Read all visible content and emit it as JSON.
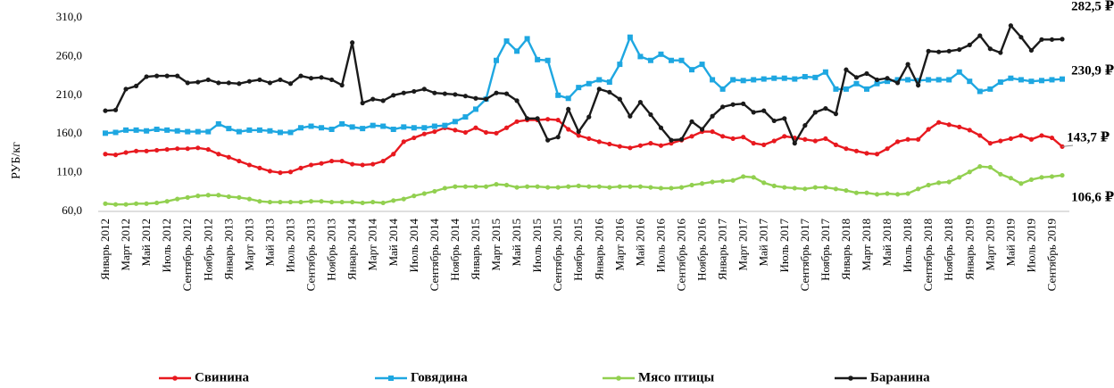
{
  "chart_data": {
    "type": "line",
    "y_label": "РУБ/кг",
    "ylim": [
      60,
      310
    ],
    "yticks": [
      {
        "value": 60,
        "label": "60,0"
      },
      {
        "value": 110,
        "label": "110,0"
      },
      {
        "value": 160,
        "label": "160,0"
      },
      {
        "value": 210,
        "label": "210,0"
      },
      {
        "value": 260,
        "label": "260,0"
      },
      {
        "value": 310,
        "label": "310,0"
      }
    ],
    "grid": false,
    "legend": "bottom",
    "categories": [
      "Январь 2012",
      null,
      "Март 2012",
      null,
      "Май 2012",
      null,
      "Июль 2012",
      null,
      "Сентябрь 2012",
      null,
      "Ноябрь 2012",
      null,
      "Январь 2013",
      null,
      "Март 2013",
      null,
      "Май 2013",
      null,
      "Июль 2013",
      null,
      "Сентябрь 2013",
      null,
      "Ноябрь 2013",
      null,
      "Январь 2014",
      null,
      "Март 2014",
      null,
      "Май 2014",
      null,
      "Июль 2014",
      null,
      "Сентябрь 2014",
      null,
      "Ноябрь 2014",
      null,
      "Январь 2015",
      null,
      "Март 2015",
      null,
      "Май 2015",
      null,
      "Июль 2015",
      null,
      "Сентябрь 2015",
      null,
      "Ноябрь 2015",
      null,
      "Январь 2016",
      null,
      "Март 2016",
      null,
      "Май 2016",
      null,
      "Июль 2016",
      null,
      "Сентябрь 2016",
      null,
      "Ноябрь 2016",
      null,
      "Январь 2017",
      null,
      "Март 2017",
      null,
      "Май 2017",
      null,
      "Июль 2017",
      null,
      "Сентябрь 2017",
      null,
      "Ноябрь 2017",
      null,
      "Январь 2018",
      null,
      "Март 2018",
      null,
      "Май 2018",
      null,
      "Июль 2018",
      null,
      "Сентябрь 2018",
      null,
      "Ноябрь 2018",
      null,
      "Январь 2019",
      null,
      "Март 2019",
      null,
      "Май 2019",
      null,
      "Июль 2019",
      null,
      "Сентябрь 2019",
      null
    ],
    "series": [
      {
        "name": "Свинина",
        "color": "#e8191f",
        "marker": "circle",
        "values": [
          134,
          133,
          136,
          138,
          138,
          139,
          140,
          141,
          141,
          142,
          140,
          134,
          130,
          125,
          120,
          116,
          112,
          110,
          111,
          116,
          120,
          122,
          125,
          125,
          121,
          120,
          121,
          125,
          134,
          150,
          155,
          160,
          163,
          168,
          165,
          162,
          168,
          162,
          161,
          168,
          176,
          178,
          178,
          179,
          178,
          166,
          158,
          154,
          150,
          147,
          144,
          142,
          145,
          148,
          145,
          148,
          152,
          157,
          163,
          163,
          157,
          154,
          156,
          148,
          146,
          151,
          157,
          155,
          153,
          151,
          154,
          146,
          141,
          138,
          135,
          134,
          141,
          150,
          153,
          153,
          166,
          175,
          172,
          169,
          165,
          158,
          148,
          151,
          154,
          158,
          153,
          158,
          155,
          143.7
        ],
        "value_labels": [
          null,
          null,
          null,
          null,
          null,
          null,
          null,
          null,
          null,
          null,
          null,
          null,
          null,
          null,
          null,
          null,
          null,
          null,
          null,
          null,
          null,
          null,
          null,
          null,
          null,
          null,
          null,
          null,
          null,
          null,
          null,
          null,
          null,
          null,
          null,
          null,
          null,
          null,
          null,
          null,
          null,
          null,
          null,
          null,
          null,
          null,
          null,
          null,
          null,
          null,
          null,
          null,
          null,
          null,
          null,
          null,
          null,
          null,
          null,
          null,
          null,
          null,
          null,
          null,
          null,
          null,
          null,
          null,
          null,
          null,
          null,
          null,
          null,
          null,
          null,
          null,
          null,
          null,
          null,
          null,
          null,
          null,
          null,
          null,
          null,
          null,
          null,
          null,
          null,
          null,
          null,
          null,
          null,
          "143,7 ₽"
        ]
      },
      {
        "name": "Говядина",
        "color": "#1ea7e1",
        "marker": "square",
        "values": [
          161,
          162,
          165,
          165,
          164,
          166,
          165,
          164,
          163,
          163,
          163,
          173,
          167,
          163,
          165,
          165,
          164,
          162,
          162,
          168,
          170,
          168,
          166,
          173,
          169,
          167,
          171,
          170,
          166,
          169,
          168,
          168,
          170,
          171,
          176,
          182,
          192,
          205,
          255,
          280,
          267,
          283,
          256,
          255,
          210,
          206,
          220,
          225,
          230,
          227,
          250,
          285,
          260,
          255,
          263,
          255,
          255,
          243,
          250,
          230,
          218,
          230,
          229,
          230,
          231,
          232,
          232,
          231,
          234,
          233,
          240,
          218,
          218,
          225,
          218,
          225,
          228,
          230,
          230,
          229,
          230,
          230,
          230,
          240,
          228,
          215,
          218,
          227,
          232,
          230,
          228,
          229,
          230,
          230.9
        ],
        "value_labels": [
          null,
          null,
          null,
          null,
          null,
          null,
          null,
          null,
          null,
          null,
          null,
          null,
          null,
          null,
          null,
          null,
          null,
          null,
          null,
          null,
          null,
          null,
          null,
          null,
          null,
          null,
          null,
          null,
          null,
          null,
          null,
          null,
          null,
          null,
          null,
          null,
          null,
          null,
          null,
          null,
          null,
          null,
          null,
          null,
          null,
          null,
          null,
          null,
          null,
          null,
          null,
          null,
          null,
          null,
          null,
          null,
          null,
          null,
          null,
          null,
          null,
          null,
          null,
          null,
          null,
          null,
          null,
          null,
          null,
          null,
          null,
          null,
          null,
          null,
          null,
          null,
          null,
          null,
          null,
          null,
          null,
          null,
          null,
          null,
          null,
          null,
          null,
          null,
          null,
          null,
          null,
          null,
          null,
          "230,9 ₽"
        ]
      },
      {
        "name": "Мясо птицы",
        "color": "#92d050",
        "marker": "circle",
        "values": [
          70,
          69,
          69,
          70,
          70,
          71,
          73,
          76,
          78,
          80,
          81,
          81,
          79,
          78,
          76,
          73,
          72,
          72,
          72,
          72,
          73,
          73,
          72,
          72,
          72,
          71,
          72,
          71,
          74,
          76,
          80,
          83,
          86,
          90,
          92,
          92,
          92,
          92,
          95,
          94,
          91,
          92,
          92,
          91,
          91,
          92,
          93,
          92,
          92,
          91,
          92,
          92,
          92,
          91,
          90,
          90,
          91,
          94,
          96,
          98,
          99,
          100,
          105,
          104,
          97,
          93,
          91,
          90,
          89,
          91,
          91,
          89,
          87,
          84,
          84,
          82,
          83,
          82,
          83,
          89,
          94,
          97,
          98,
          104,
          111,
          118,
          117,
          108,
          103,
          96,
          101,
          104,
          105,
          106.6
        ],
        "value_labels": [
          null,
          null,
          null,
          null,
          null,
          null,
          null,
          null,
          null,
          null,
          null,
          null,
          null,
          null,
          null,
          null,
          null,
          null,
          null,
          null,
          null,
          null,
          null,
          null,
          null,
          null,
          null,
          null,
          null,
          null,
          null,
          null,
          null,
          null,
          null,
          null,
          null,
          null,
          null,
          null,
          null,
          null,
          null,
          null,
          null,
          null,
          null,
          null,
          null,
          null,
          null,
          null,
          null,
          null,
          null,
          null,
          null,
          null,
          null,
          null,
          null,
          null,
          null,
          null,
          null,
          null,
          null,
          null,
          null,
          null,
          null,
          null,
          null,
          null,
          null,
          null,
          null,
          null,
          null,
          null,
          null,
          null,
          null,
          null,
          null,
          null,
          null,
          null,
          null,
          null,
          null,
          null,
          null,
          "106,6 ₽"
        ]
      },
      {
        "name": "Баранина",
        "color": "#1a1a1a",
        "marker": "circle",
        "values": [
          190,
          191,
          218,
          222,
          234,
          235,
          235,
          235,
          226,
          227,
          230,
          226,
          226,
          225,
          228,
          230,
          226,
          230,
          225,
          235,
          232,
          233,
          230,
          223,
          278,
          200,
          205,
          203,
          210,
          213,
          215,
          218,
          213,
          212,
          211,
          209,
          206,
          205,
          213,
          212,
          203,
          180,
          180,
          152,
          156,
          192,
          163,
          182,
          218,
          214,
          205,
          183,
          201,
          185,
          168,
          152,
          153,
          176,
          166,
          183,
          195,
          198,
          199,
          188,
          190,
          177,
          180,
          148,
          171,
          188,
          193,
          186,
          243,
          233,
          238,
          230,
          232,
          226,
          250,
          223,
          267,
          266,
          267,
          269,
          275,
          287,
          270,
          265,
          300,
          285,
          268,
          282,
          282,
          282.5
        ],
        "value_labels": [
          null,
          null,
          null,
          null,
          null,
          null,
          null,
          null,
          null,
          null,
          null,
          null,
          null,
          null,
          null,
          null,
          null,
          null,
          null,
          null,
          null,
          null,
          null,
          null,
          null,
          null,
          null,
          null,
          null,
          null,
          null,
          null,
          null,
          null,
          null,
          null,
          null,
          null,
          null,
          null,
          null,
          null,
          null,
          null,
          null,
          null,
          null,
          null,
          null,
          null,
          null,
          null,
          null,
          null,
          null,
          null,
          null,
          null,
          null,
          null,
          null,
          null,
          null,
          null,
          null,
          null,
          null,
          null,
          null,
          null,
          null,
          null,
          null,
          null,
          null,
          null,
          null,
          null,
          null,
          null,
          null,
          null,
          null,
          null,
          null,
          null,
          null,
          null,
          null,
          null,
          null,
          null,
          null,
          "282,5 ₽"
        ]
      }
    ]
  }
}
